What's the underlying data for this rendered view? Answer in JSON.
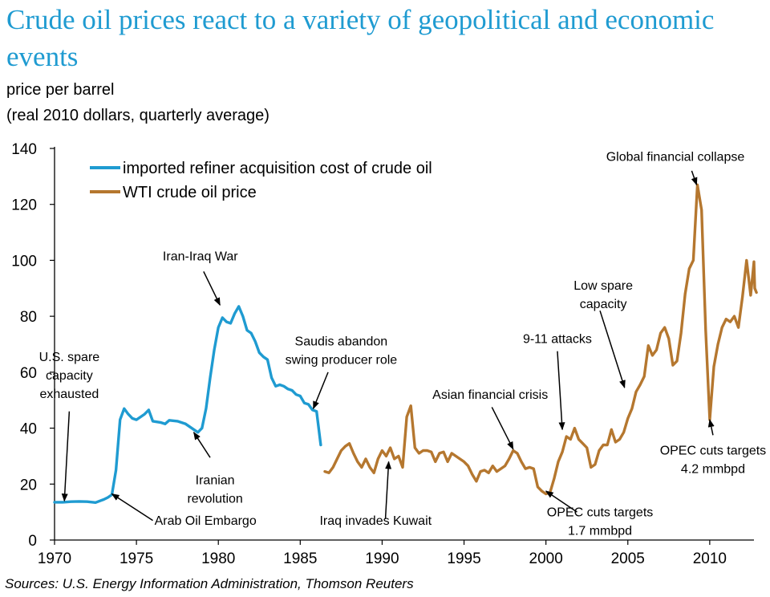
{
  "title": "Crude oil prices react to a variety of geopolitical and economic events",
  "subtitle_line1": "price per barrel",
  "subtitle_line2": "(real 2010 dollars, quarterly average)",
  "source": "Sources: U.S. Energy Information Administration, Thomson Reuters",
  "colors": {
    "title": "#1f9bd1",
    "refiner": "#1f9bd1",
    "wti": "#b5772f"
  },
  "chart_data": {
    "type": "line",
    "xlim": [
      1970,
      2012.7
    ],
    "ylim": [
      0,
      140
    ],
    "x_ticks": [
      1970,
      1975,
      1980,
      1985,
      1990,
      1995,
      2000,
      2005,
      2010
    ],
    "y_ticks": [
      0,
      20,
      40,
      60,
      80,
      100,
      120,
      140
    ],
    "grid": false,
    "legend_position": "top-left",
    "series": [
      {
        "name": "imported refiner acquisition cost of crude oil",
        "color": "#1f9bd1",
        "points": [
          [
            1970,
            13.5
          ],
          [
            1970.5,
            13.5
          ],
          [
            1971,
            13.7
          ],
          [
            1971.5,
            13.8
          ],
          [
            1972,
            13.7
          ],
          [
            1972.5,
            13.4
          ],
          [
            1973,
            14.5
          ],
          [
            1973.25,
            15.2
          ],
          [
            1973.5,
            16.2
          ],
          [
            1973.75,
            25
          ],
          [
            1974,
            43
          ],
          [
            1974.25,
            47
          ],
          [
            1974.5,
            45
          ],
          [
            1974.75,
            43.5
          ],
          [
            1975,
            43
          ],
          [
            1975.25,
            44
          ],
          [
            1975.5,
            45
          ],
          [
            1975.75,
            46.5
          ],
          [
            1976,
            42.5
          ],
          [
            1976.5,
            42
          ],
          [
            1976.75,
            41.5
          ],
          [
            1977,
            42.8
          ],
          [
            1977.5,
            42.5
          ],
          [
            1978,
            41.5
          ],
          [
            1978.5,
            39.5
          ],
          [
            1978.75,
            38.5
          ],
          [
            1979,
            40
          ],
          [
            1979.25,
            47
          ],
          [
            1979.5,
            58
          ],
          [
            1979.75,
            68
          ],
          [
            1980,
            76
          ],
          [
            1980.25,
            79.5
          ],
          [
            1980.5,
            78
          ],
          [
            1980.75,
            77.5
          ],
          [
            1981,
            81
          ],
          [
            1981.25,
            83.5
          ],
          [
            1981.5,
            80
          ],
          [
            1981.75,
            75
          ],
          [
            1982,
            74
          ],
          [
            1982.25,
            71
          ],
          [
            1982.5,
            67
          ],
          [
            1982.75,
            65.5
          ],
          [
            1983,
            64.5
          ],
          [
            1983.25,
            58
          ],
          [
            1983.5,
            55
          ],
          [
            1983.75,
            55.5
          ],
          [
            1984,
            55
          ],
          [
            1984.25,
            54
          ],
          [
            1984.5,
            53.5
          ],
          [
            1984.75,
            52
          ],
          [
            1985,
            51.5
          ],
          [
            1985.25,
            49
          ],
          [
            1985.5,
            48.5
          ],
          [
            1985.75,
            46.5
          ],
          [
            1986,
            46
          ],
          [
            1986.25,
            34
          ]
        ]
      },
      {
        "name": "WTI crude oil price",
        "color": "#b5772f",
        "points": [
          [
            1986.5,
            24.5
          ],
          [
            1986.75,
            24
          ],
          [
            1987,
            26
          ],
          [
            1987.25,
            29
          ],
          [
            1987.5,
            32
          ],
          [
            1987.75,
            33.5
          ],
          [
            1988,
            34.5
          ],
          [
            1988.25,
            31
          ],
          [
            1988.5,
            28
          ],
          [
            1988.75,
            26
          ],
          [
            1989,
            29
          ],
          [
            1989.25,
            26
          ],
          [
            1989.5,
            24
          ],
          [
            1989.75,
            29
          ],
          [
            1990,
            32
          ],
          [
            1990.25,
            30
          ],
          [
            1990.5,
            33
          ],
          [
            1990.75,
            29
          ],
          [
            1991,
            30
          ],
          [
            1991.25,
            26
          ],
          [
            1991.5,
            44
          ],
          [
            1991.75,
            48
          ],
          [
            1992,
            33
          ],
          [
            1992.25,
            31
          ],
          [
            1992.5,
            32
          ],
          [
            1992.75,
            32
          ],
          [
            1993,
            31.5
          ],
          [
            1993.25,
            28
          ],
          [
            1993.5,
            31
          ],
          [
            1993.75,
            31.5
          ],
          [
            1994,
            28
          ],
          [
            1994.25,
            31
          ],
          [
            1994.5,
            30
          ],
          [
            1994.75,
            29
          ],
          [
            1995,
            28
          ],
          [
            1995.25,
            26.5
          ],
          [
            1995.5,
            23.5
          ],
          [
            1995.75,
            21
          ],
          [
            1996,
            24.5
          ],
          [
            1996.25,
            25
          ],
          [
            1996.5,
            24
          ],
          [
            1996.75,
            26.5
          ],
          [
            1997,
            24.5
          ],
          [
            1997.25,
            25.5
          ],
          [
            1997.5,
            26.5
          ],
          [
            1997.75,
            29
          ],
          [
            1998,
            32
          ],
          [
            1998.25,
            31
          ],
          [
            1998.5,
            28
          ],
          [
            1998.75,
            25.5
          ],
          [
            1999,
            26
          ],
          [
            1999.25,
            25.5
          ],
          [
            1999.5,
            19
          ],
          [
            1999.75,
            17.5
          ],
          [
            2000,
            16.5
          ],
          [
            2000.25,
            17
          ],
          [
            2000.5,
            22
          ],
          [
            2000.75,
            28
          ],
          [
            2001,
            31.5
          ],
          [
            2001.25,
            37
          ],
          [
            2001.5,
            36
          ],
          [
            2001.75,
            40
          ],
          [
            2002,
            36
          ],
          [
            2002.25,
            34.5
          ],
          [
            2002.5,
            33
          ],
          [
            2002.75,
            26
          ],
          [
            2003,
            27
          ],
          [
            2003.25,
            32
          ],
          [
            2003.5,
            34
          ],
          [
            2003.75,
            34
          ],
          [
            2004,
            39.5
          ],
          [
            2004.25,
            35
          ],
          [
            2004.5,
            36
          ],
          [
            2004.75,
            38.5
          ],
          [
            2005,
            43.5
          ],
          [
            2005.25,
            47
          ],
          [
            2005.5,
            53
          ],
          [
            2005.75,
            55.5
          ],
          [
            2006,
            58.5
          ],
          [
            2006.25,
            69.5
          ],
          [
            2006.5,
            66
          ],
          [
            2006.75,
            68
          ],
          [
            2007,
            74
          ],
          [
            2007.25,
            76
          ],
          [
            2007.5,
            72
          ],
          [
            2007.75,
            62.5
          ],
          [
            2008,
            64
          ],
          [
            2008.25,
            74
          ],
          [
            2008.5,
            88
          ],
          [
            2008.75,
            97
          ],
          [
            2009,
            100
          ],
          [
            2009.25,
            127
          ],
          [
            2009.5,
            118
          ],
          [
            2009.75,
            75
          ],
          [
            2010,
            43
          ],
          [
            2010.25,
            62
          ],
          [
            2010.5,
            70
          ],
          [
            2010.75,
            76
          ],
          [
            2011,
            79
          ],
          [
            2011.25,
            78
          ],
          [
            2011.5,
            80
          ],
          [
            2011.75,
            76
          ],
          [
            2012,
            87
          ],
          [
            2012.25,
            100
          ],
          [
            2012.5,
            87.5
          ],
          [
            2012.7,
            99.5
          ],
          [
            2012.75,
            90
          ],
          [
            2012.85,
            88.5
          ]
        ]
      }
    ],
    "annotations": [
      {
        "lines": [
          "U.S. spare",
          "capacity",
          "exhausted"
        ],
        "align": "middle",
        "label_at": [
          1970.9,
          64
        ],
        "arrow_from": [
          1970.9,
          46
        ],
        "arrow_to": [
          1970.6,
          14
        ]
      },
      {
        "lines": [
          "Arab Oil Embargo"
        ],
        "align": "start",
        "label_at": [
          1976.1,
          5.5
        ],
        "arrow_from": [
          1976,
          7
        ],
        "arrow_to": [
          1973.5,
          16.5
        ]
      },
      {
        "lines": [
          "Iran-Iraq War"
        ],
        "align": "middle",
        "label_at": [
          1978.9,
          100
        ],
        "arrow_from": [
          1979.1,
          96
        ],
        "arrow_to": [
          1980.1,
          84
        ]
      },
      {
        "lines": [
          "Iranian",
          "revolution"
        ],
        "align": "middle",
        "label_at": [
          1979.8,
          20
        ],
        "arrow_from": [
          1979.5,
          29.5
        ],
        "arrow_to": [
          1978.5,
          38.5
        ]
      },
      {
        "lines": [
          "Saudis abandon",
          "swing producer role"
        ],
        "align": "middle",
        "label_at": [
          1987.5,
          69.5
        ],
        "arrow_from": [
          1986.7,
          60
        ],
        "arrow_to": [
          1985.8,
          47
        ]
      },
      {
        "lines": [
          "Iraq invades Kuwait"
        ],
        "align": "middle",
        "label_at": [
          1989.6,
          5.5
        ],
        "arrow_from": [
          1990.2,
          7.5
        ],
        "arrow_to": [
          1990.4,
          28
        ]
      },
      {
        "lines": [
          "Asian financial crisis"
        ],
        "align": "middle",
        "label_at": [
          1996.6,
          50.5
        ],
        "arrow_from": [
          1996.7,
          47.5
        ],
        "arrow_to": [
          1998,
          32.5
        ]
      },
      {
        "lines": [
          "9-11 attacks"
        ],
        "align": "middle",
        "label_at": [
          2000.7,
          70.5
        ],
        "arrow_from": [
          2000.7,
          67.5
        ],
        "arrow_to": [
          2001,
          39.5
        ]
      },
      {
        "lines": [
          "OPEC cuts targets",
          "1.7 mmbpd"
        ],
        "align": "middle",
        "label_at": [
          2003.3,
          8.5
        ],
        "arrow_from": [
          2001.9,
          10
        ],
        "arrow_to": [
          2000,
          17.5
        ]
      },
      {
        "lines": [
          "Low spare",
          "capacity"
        ],
        "align": "middle",
        "label_at": [
          2003.5,
          89.5
        ],
        "arrow_from": [
          2003.3,
          82
        ],
        "arrow_to": [
          2004.8,
          54.5
        ]
      },
      {
        "lines": [
          "Global financial collapse"
        ],
        "align": "middle",
        "label_at": [
          2007.9,
          135.5
        ],
        "arrow_from": [
          2008.9,
          132
        ],
        "arrow_to": [
          2009.2,
          127
        ]
      },
      {
        "lines": [
          "OPEC cuts targets",
          "4.2 mmbpd"
        ],
        "align": "middle",
        "label_at": [
          2010.2,
          30.5
        ],
        "arrow_from": [
          2010.2,
          37.5
        ],
        "arrow_to": [
          2010,
          43
        ]
      }
    ]
  }
}
